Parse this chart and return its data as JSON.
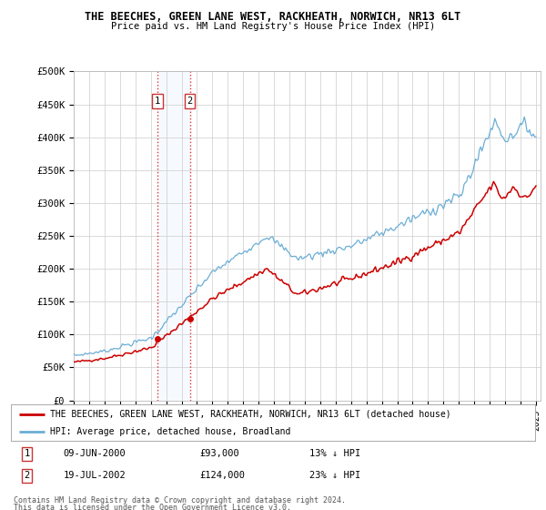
{
  "title1": "THE BEECHES, GREEN LANE WEST, RACKHEATH, NORWICH, NR13 6LT",
  "title2": "Price paid vs. HM Land Registry's House Price Index (HPI)",
  "ylabel_ticks": [
    "£0",
    "£50K",
    "£100K",
    "£150K",
    "£200K",
    "£250K",
    "£300K",
    "£350K",
    "£400K",
    "£450K",
    "£500K"
  ],
  "ytick_values": [
    0,
    50000,
    100000,
    150000,
    200000,
    250000,
    300000,
    350000,
    400000,
    450000,
    500000
  ],
  "sale1_date": "09-JUN-2000",
  "sale1_price": 93000,
  "sale1_hpi_pct": "13% ↓ HPI",
  "sale1_x": 2000.44,
  "sale2_date": "19-JUL-2002",
  "sale2_price": 124000,
  "sale2_hpi_pct": "23% ↓ HPI",
  "sale2_x": 2002.54,
  "hpi_color": "#6baed6",
  "price_color": "#cc0000",
  "shading_color": "#ddeeff",
  "legend_label1": "THE BEECHES, GREEN LANE WEST, RACKHEATH, NORWICH, NR13 6LT (detached house)",
  "legend_label2": "HPI: Average price, detached house, Broadland",
  "footer1": "Contains HM Land Registry data © Crown copyright and database right 2024.",
  "footer2": "This data is licensed under the Open Government Licence v3.0.",
  "bg_color": "#f0f4fa"
}
